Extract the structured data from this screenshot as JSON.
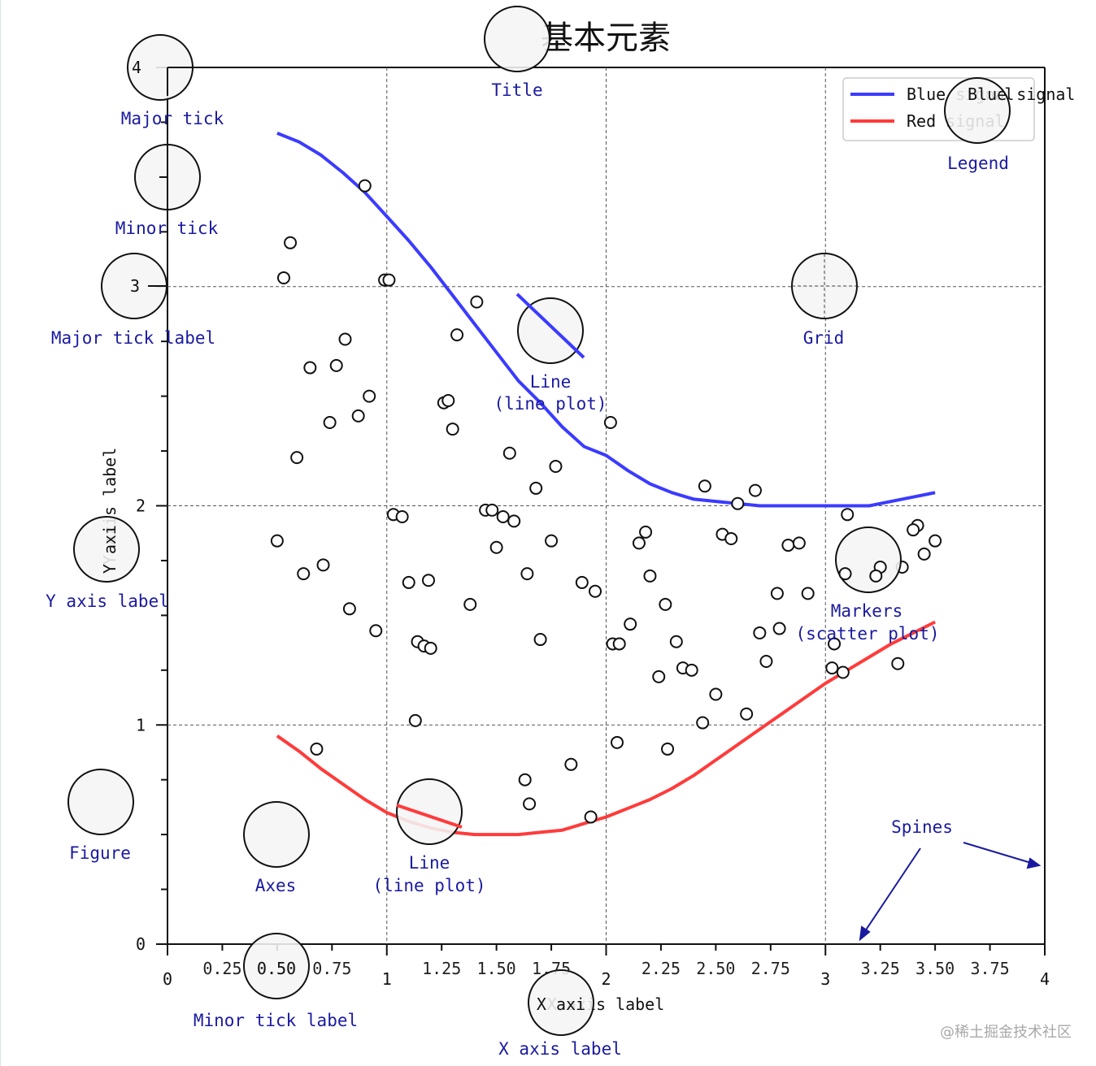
{
  "chart_data": {
    "type": "line",
    "title": "基本元素",
    "xlabel": "X axis label",
    "ylabel": "Y axis label",
    "xlim": [
      0,
      4
    ],
    "ylim": [
      0,
      4
    ],
    "major_ticks": [
      "0",
      "1",
      "2",
      "3",
      "4"
    ],
    "x_minor_ticks": [
      "0.25",
      "0.50",
      "0.75",
      "1.25",
      "1.50",
      "1.75",
      "2.25",
      "2.50",
      "2.75",
      "3.25",
      "3.50",
      "3.75"
    ],
    "grid": true,
    "legend": {
      "position": "top-right",
      "entries": [
        "Blue signal",
        "Red signal"
      ]
    },
    "series": [
      {
        "name": "Blue signal",
        "color": "#3b3bff",
        "x": [
          0.5,
          0.6,
          0.7,
          0.8,
          0.9,
          1.0,
          1.1,
          1.2,
          1.3,
          1.4,
          1.5,
          1.6,
          1.7,
          1.8,
          1.9,
          2.0,
          2.1,
          2.2,
          2.3,
          2.4,
          2.5,
          2.6,
          2.7,
          2.8,
          2.9,
          3.0,
          3.1,
          3.2,
          3.3,
          3.4,
          3.5
        ],
        "y": [
          3.7,
          3.66,
          3.6,
          3.52,
          3.43,
          3.32,
          3.21,
          3.09,
          2.96,
          2.83,
          2.7,
          2.57,
          2.47,
          2.36,
          2.27,
          2.23,
          2.16,
          2.1,
          2.06,
          2.03,
          2.02,
          2.01,
          2.0,
          2.0,
          2.0,
          2.0,
          2.0,
          2.0,
          2.02,
          2.04,
          2.06
        ]
      },
      {
        "name": "Red signal",
        "color": "#ff3b3b",
        "x": [
          0.5,
          0.6,
          0.7,
          0.8,
          0.9,
          1.0,
          1.1,
          1.2,
          1.3,
          1.4,
          1.5,
          1.6,
          1.7,
          1.8,
          1.9,
          2.0,
          2.1,
          2.2,
          2.3,
          2.4,
          2.5,
          2.6,
          2.7,
          2.8,
          2.9,
          3.0,
          3.1,
          3.2,
          3.3,
          3.4,
          3.5
        ],
        "y": [
          0.95,
          0.88,
          0.8,
          0.73,
          0.66,
          0.6,
          0.56,
          0.53,
          0.51,
          0.5,
          0.5,
          0.5,
          0.51,
          0.52,
          0.55,
          0.58,
          0.62,
          0.66,
          0.71,
          0.77,
          0.84,
          0.91,
          0.98,
          1.05,
          1.12,
          1.19,
          1.25,
          1.31,
          1.37,
          1.42,
          1.47
        ]
      }
    ],
    "scatter": {
      "x": [
        0.9,
        0.56,
        0.53,
        0.99,
        1.01,
        1.41,
        0.81,
        0.65,
        0.77,
        0.92,
        1.32,
        0.74,
        0.87,
        1.26,
        1.3,
        1.28,
        0.59,
        1.56,
        2.02,
        1.77,
        1.68,
        1.03,
        1.07,
        1.45,
        1.48,
        1.53,
        1.58,
        0.5,
        1.5,
        1.75,
        2.6,
        2.45,
        2.68,
        2.18,
        2.15,
        2.83,
        2.88,
        2.53,
        2.57,
        3.1,
        3.25,
        3.35,
        3.42,
        3.5,
        3.4,
        3.45,
        0.62,
        0.71,
        1.1,
        1.19,
        1.64,
        1.89,
        2.2,
        0.83,
        0.95,
        1.38,
        2.03,
        1.95,
        1.7,
        1.14,
        1.17,
        1.2,
        2.27,
        2.35,
        2.39,
        2.32,
        2.06,
        2.11,
        2.24,
        2.7,
        2.79,
        2.78,
        2.73,
        2.92,
        3.09,
        3.23,
        3.08,
        3.04,
        3.03,
        3.33,
        1.13,
        2.44,
        2.28,
        2.64,
        2.5,
        0.68,
        1.84,
        2.05,
        1.63,
        1.65,
        1.93
      ],
      "y": [
        3.46,
        3.2,
        3.04,
        3.03,
        3.03,
        2.93,
        2.76,
        2.63,
        2.64,
        2.5,
        2.78,
        2.38,
        2.41,
        2.47,
        2.35,
        2.48,
        2.22,
        2.24,
        2.38,
        2.18,
        2.08,
        1.96,
        1.95,
        1.98,
        1.98,
        1.95,
        1.93,
        1.84,
        1.81,
        1.84,
        2.01,
        2.09,
        2.07,
        1.88,
        1.83,
        1.82,
        1.83,
        1.87,
        1.85,
        1.96,
        1.72,
        1.72,
        1.91,
        1.84,
        1.89,
        1.78,
        1.69,
        1.73,
        1.65,
        1.66,
        1.69,
        1.65,
        1.68,
        1.53,
        1.43,
        1.55,
        1.37,
        1.61,
        1.39,
        1.38,
        1.36,
        1.35,
        1.55,
        1.26,
        1.25,
        1.38,
        1.37,
        1.46,
        1.22,
        1.42,
        1.44,
        1.6,
        1.29,
        1.6,
        1.69,
        1.68,
        1.24,
        1.37,
        1.26,
        1.28,
        1.02,
        1.01,
        0.89,
        1.05,
        1.14,
        0.89,
        0.82,
        0.92,
        0.75,
        0.64,
        0.58
      ]
    }
  },
  "annotations": {
    "title": "Title",
    "major_tick": "Major tick",
    "minor_tick": "Minor tick",
    "major_tick_label": "Major tick label",
    "grid": "Grid",
    "legend": "Legend",
    "line_top_1": "Line",
    "line_top_2": "(line plot)",
    "line_bottom_1": "Line",
    "line_bottom_2": "(line plot)",
    "markers_1": "Markers",
    "markers_2": "(scatter plot)",
    "y_axis_label": "Y axis label",
    "figure": "Figure",
    "axes": "Axes",
    "spines": "Spines",
    "minor_tick_label": "Minor tick label",
    "x_axis_label": "X axis label"
  },
  "watermark": "@稀土掘金技术社区"
}
